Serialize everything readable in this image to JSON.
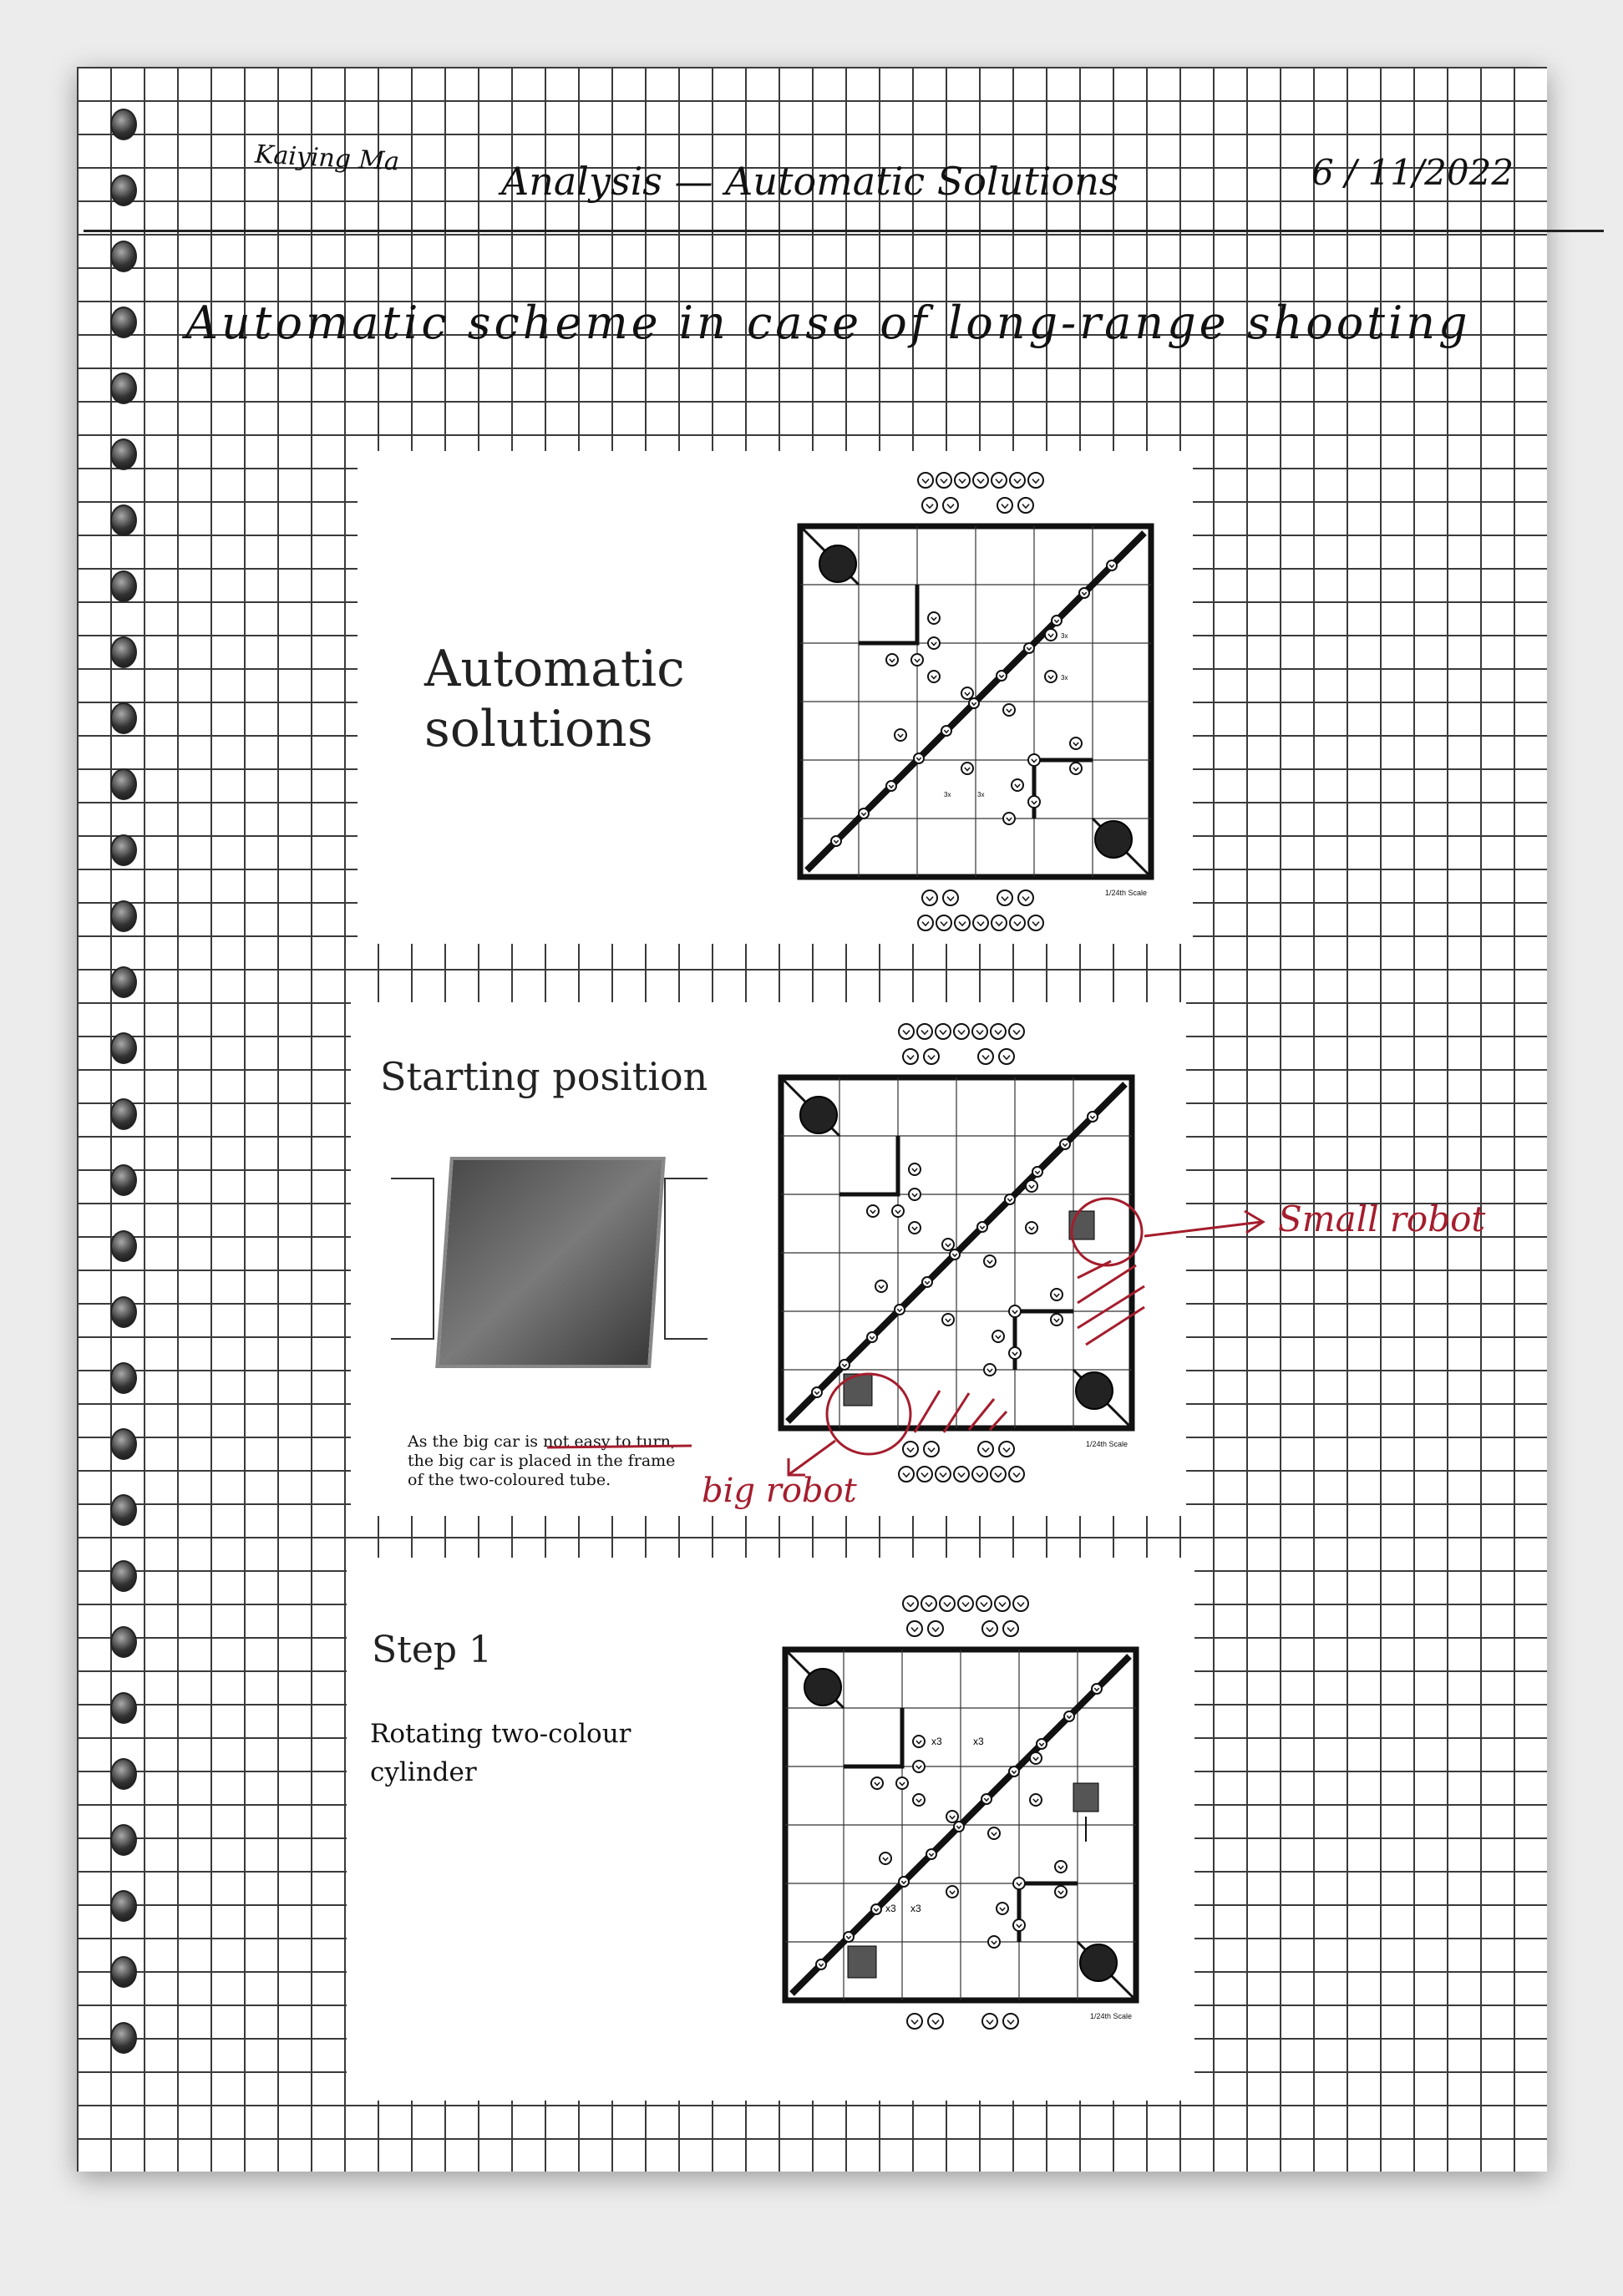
{
  "header": {
    "author": "Kaiying Ma",
    "title": "Analysis — Automatic Solutions",
    "date": "6 / 11/2022"
  },
  "heading": "Automatic scheme in case of long-range shooting",
  "slides": [
    {
      "title": "Automatic solutions"
    },
    {
      "title": "Starting position",
      "caption_lines": [
        "As the big car is not easy to turn,",
        "the big car is placed in the frame",
        "of the two-coloured tube."
      ]
    },
    {
      "title": "Step 1",
      "subtitle_lines": [
        "Rotating two-colour",
        "cylinder"
      ]
    }
  ],
  "annotations": {
    "small_robot": "Small robot",
    "big_robot": "big robot"
  },
  "board": {
    "scale_label": "1/24th Scale",
    "x3_label": "x3",
    "x3_label_alt": "3x"
  },
  "colors": {
    "ink": "#111111",
    "red_ink": "#a51d2d",
    "grid": "#3a3a3a"
  }
}
